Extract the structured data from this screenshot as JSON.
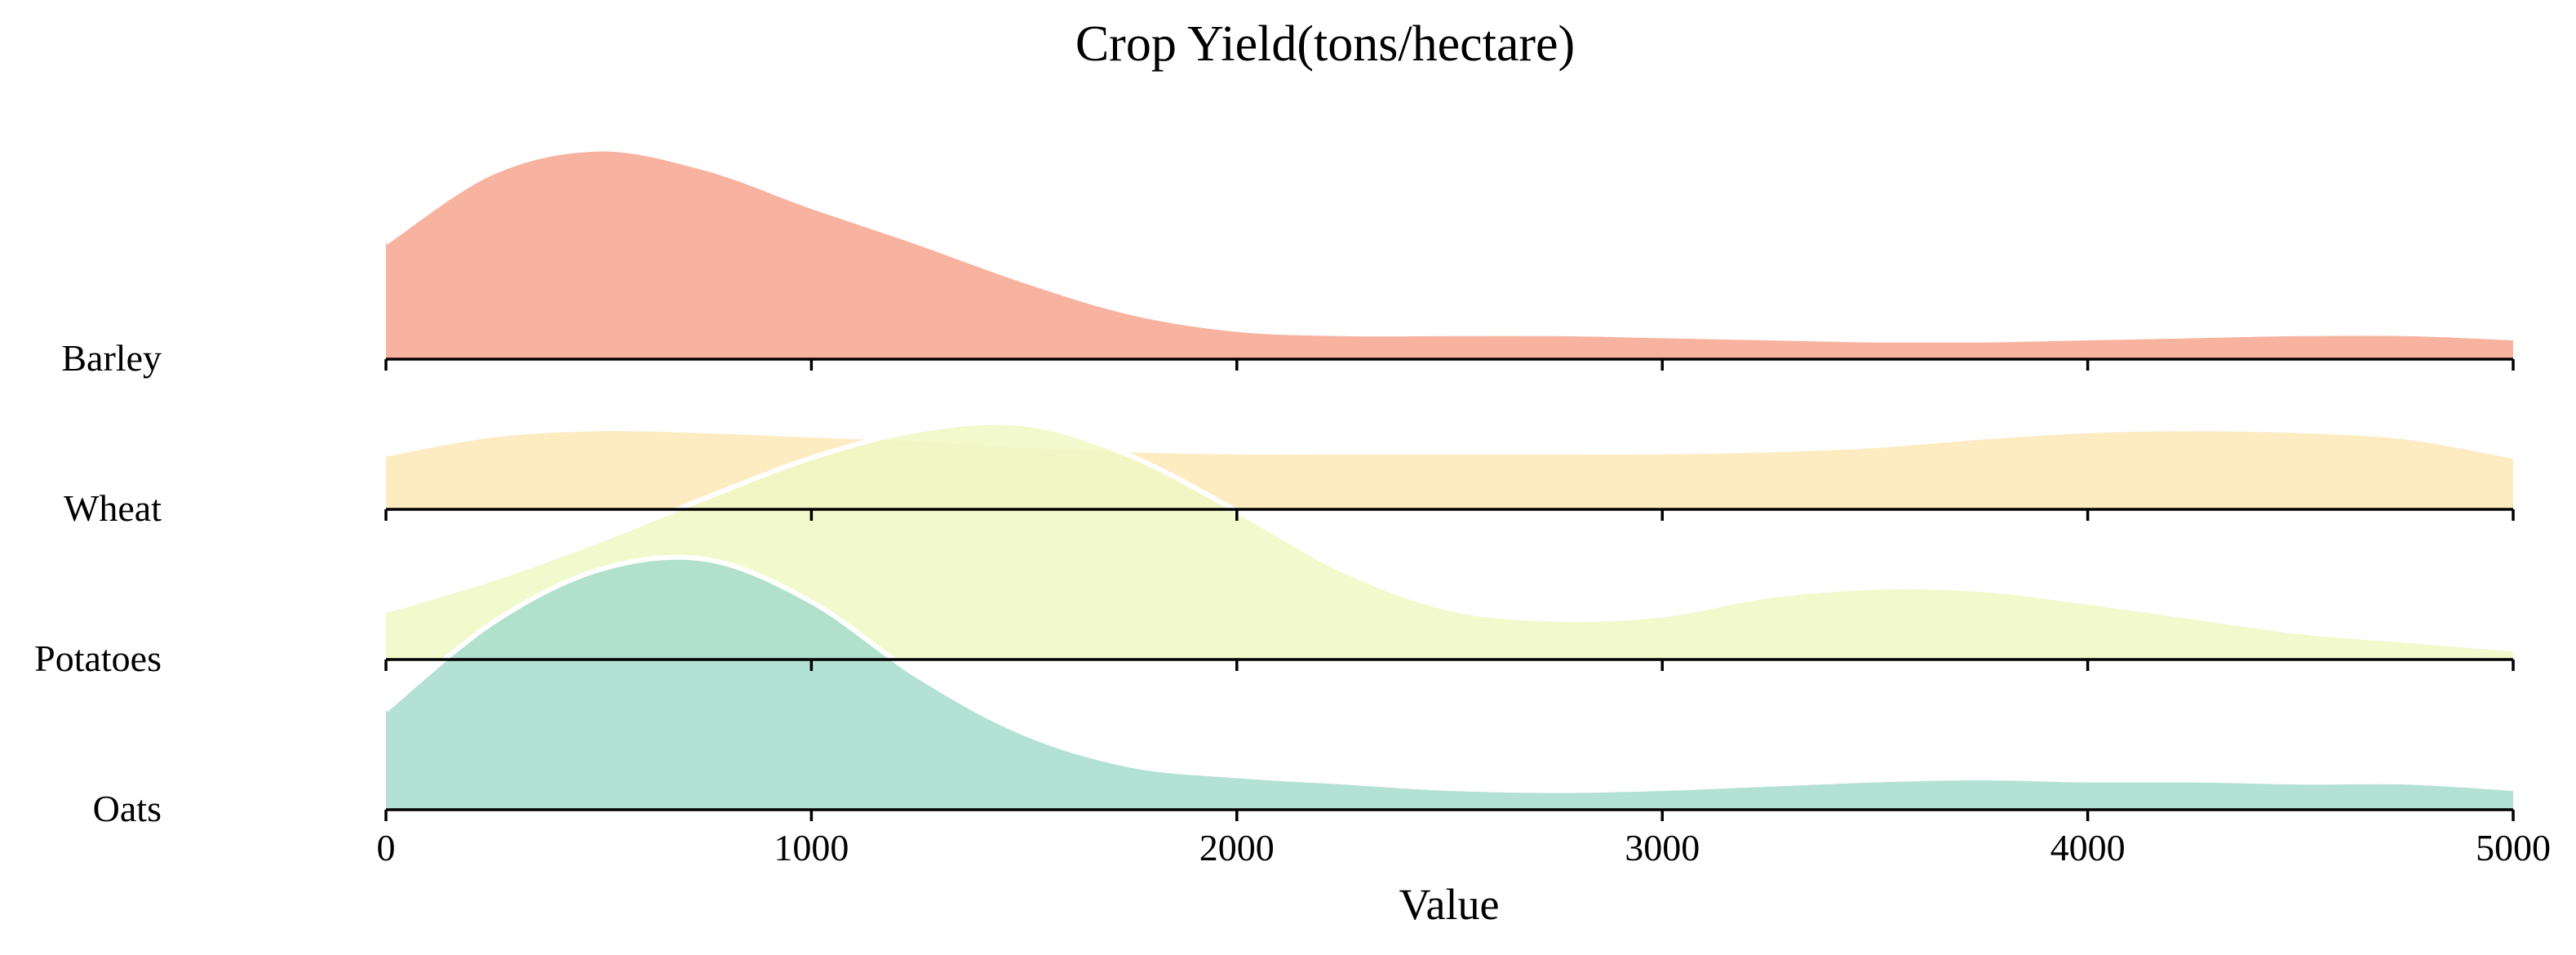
{
  "chart_data": {
    "type": "area",
    "subtype": "ridgeline",
    "title": "Crop Yield(tons/hectare)",
    "xlabel": "Value",
    "ylabel": "",
    "xlim": [
      0,
      5000
    ],
    "x_ticks": [
      "0",
      "1000",
      "2000",
      "3000",
      "4000",
      "5000"
    ],
    "x": [
      0,
      250,
      500,
      750,
      1000,
      1250,
      1500,
      1750,
      2000,
      2250,
      2500,
      2750,
      3000,
      3250,
      3500,
      3750,
      4000,
      4250,
      4500,
      4750,
      5000
    ],
    "grid": false,
    "legend": "none",
    "series": [
      {
        "name": "Barley",
        "color": "#f7a68f",
        "values": [
          0.55,
          0.88,
          0.99,
          0.9,
          0.72,
          0.55,
          0.37,
          0.22,
          0.14,
          0.12,
          0.12,
          0.12,
          0.11,
          0.1,
          0.09,
          0.09,
          0.1,
          0.11,
          0.12,
          0.12,
          0.1
        ]
      },
      {
        "name": "Wheat",
        "color": "#fde9b7",
        "values": [
          0.26,
          0.35,
          0.38,
          0.37,
          0.35,
          0.33,
          0.3,
          0.28,
          0.27,
          0.27,
          0.27,
          0.27,
          0.27,
          0.28,
          0.3,
          0.34,
          0.37,
          0.38,
          0.37,
          0.34,
          0.25
        ]
      },
      {
        "name": "Potatoes",
        "color": "#eef8c4",
        "values": [
          0.23,
          0.38,
          0.56,
          0.76,
          0.95,
          1.08,
          1.11,
          0.96,
          0.7,
          0.42,
          0.24,
          0.19,
          0.21,
          0.3,
          0.34,
          0.33,
          0.27,
          0.2,
          0.13,
          0.09,
          0.05
        ]
      },
      {
        "name": "Oats",
        "color": "#a6dccd",
        "values": [
          0.47,
          0.88,
          1.13,
          1.18,
          0.98,
          0.63,
          0.36,
          0.21,
          0.16,
          0.13,
          0.1,
          0.09,
          0.1,
          0.12,
          0.14,
          0.15,
          0.14,
          0.14,
          0.13,
          0.13,
          0.1
        ]
      }
    ]
  }
}
